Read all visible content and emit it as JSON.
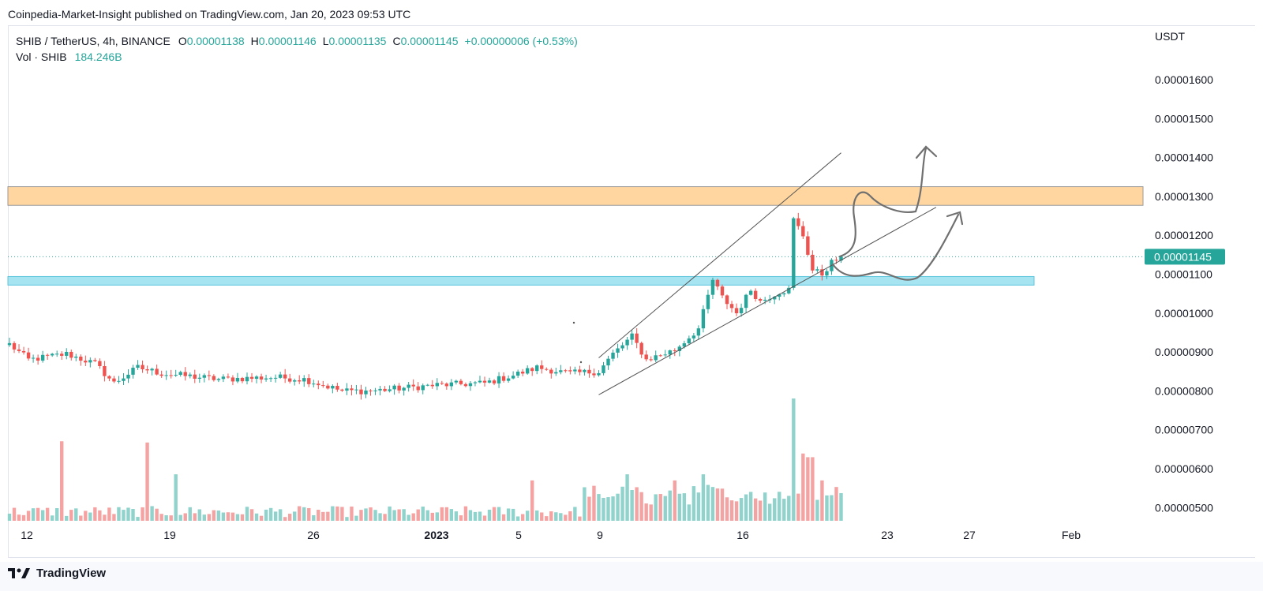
{
  "header": {
    "publisher_line": "Coinpedia-Market-Insight published on TradingView.com, Jan 20, 2023 09:53 UTC"
  },
  "legend": {
    "symbol": "SHIB / TetherUS, 4h, BINANCE",
    "open_label": "O",
    "open": "0.00001138",
    "high_label": "H",
    "high": "0.00001146",
    "low_label": "L",
    "low": "0.00001135",
    "close_label": "C",
    "close": "0.00001145",
    "change": "+0.00000006 (+0.53%)",
    "volume_label": "Vol · SHIB",
    "volume": "184.246B"
  },
  "footer": {
    "brand": "TradingView"
  },
  "colors": {
    "up": "#26a69a",
    "down": "#ef5350",
    "up_volume": "#8fd3cc",
    "down_volume": "#f5a3a2",
    "resistance_zone": "#ffd6a0",
    "support_zone": "#a7e4f2",
    "channel_line": "#555555",
    "arrow": "#707070"
  },
  "chart_data": {
    "type": "candlestick",
    "symbol": "SHIB / TetherUS",
    "interval": "4h",
    "exchange": "BINANCE",
    "y_axis_unit": "USDT",
    "y_ticks": [
      "0.00001600",
      "0.00001500",
      "0.00001400",
      "0.00001300",
      "0.00001200",
      "0.00001100",
      "0.00001000",
      "0.00000900",
      "0.00000800",
      "0.00000700",
      "0.00000600",
      "0.00000500"
    ],
    "x_ticks": [
      "12",
      "19",
      "26",
      "2023",
      "5",
      "9",
      "16",
      "23",
      "27",
      "Feb"
    ],
    "last_price": "0.00001145",
    "resistance_zone": [
      1.277e-05,
      1.325e-05
    ],
    "support_zone": [
      1.072e-05,
      1.094e-05
    ],
    "waypoints": [
      [
        0,
        9.2e-06
      ],
      [
        4,
        8.8e-06
      ],
      [
        12,
        8.95e-06
      ],
      [
        18,
        8.7e-06
      ],
      [
        22,
        8.2e-06
      ],
      [
        27,
        8.6e-06
      ],
      [
        32,
        8.45e-06
      ],
      [
        44,
        8.3e-06
      ],
      [
        56,
        8.35e-06
      ],
      [
        62,
        8.3e-06
      ],
      [
        70,
        8e-06
      ],
      [
        76,
        8e-06
      ],
      [
        90,
        8.15e-06
      ],
      [
        100,
        8.2e-06
      ],
      [
        106,
        8.4e-06
      ],
      [
        111,
        8.6e-06
      ],
      [
        118,
        8.45e-06
      ],
      [
        124,
        8.5e-06
      ],
      [
        127,
        8.95e-06
      ],
      [
        131,
        9.4e-06
      ],
      [
        134,
        8.8e-06
      ],
      [
        140,
        9.05e-06
      ],
      [
        145,
        9.6e-06
      ],
      [
        148,
        1.085e-05
      ],
      [
        150,
        1.04e-05
      ],
      [
        153,
        1e-05
      ],
      [
        156,
        1.06e-05
      ],
      [
        158,
        1.03e-05
      ],
      [
        162,
        1.055e-05
      ],
      [
        164,
        1.06e-05
      ],
      [
        165,
        1.24e-05
      ],
      [
        167,
        1.2e-05
      ],
      [
        169,
        1.11e-05
      ],
      [
        171,
        1.1e-05
      ],
      [
        173,
        1.13e-05
      ],
      [
        175,
        1.145e-05
      ]
    ],
    "volume_spikes": [
      [
        11,
        0.65
      ],
      [
        29,
        0.64
      ],
      [
        35,
        0.38
      ],
      [
        110,
        0.33
      ],
      [
        130,
        0.38
      ],
      [
        140,
        0.33
      ],
      [
        146,
        0.38
      ],
      [
        165,
        1.0
      ],
      [
        167,
        0.55
      ],
      [
        168,
        0.52
      ],
      [
        169,
        0.52
      ],
      [
        171,
        0.33
      ]
    ],
    "channel": {
      "upper": [
        [
          124,
          8.85e-06
        ],
        [
          175,
          1.412e-05
        ]
      ],
      "lower": [
        [
          124,
          7.9e-06
        ],
        [
          195,
          1.272e-05
        ]
      ]
    }
  }
}
